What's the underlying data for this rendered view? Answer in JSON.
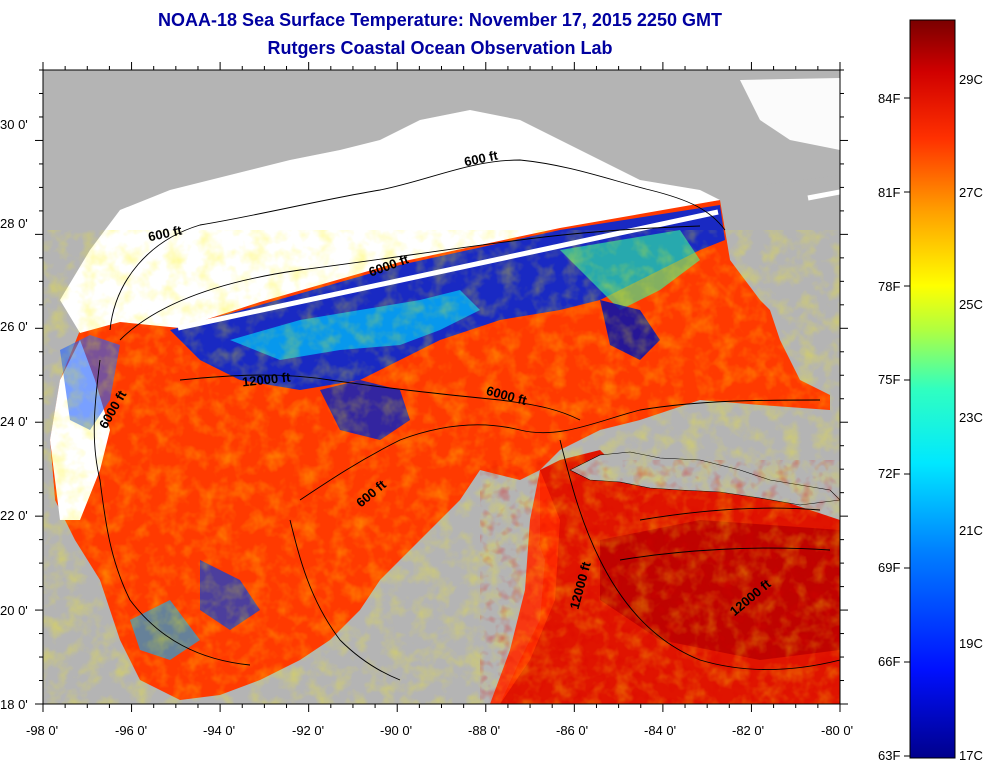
{
  "title": "NOAA-18 Sea Surface Temperature:  November 17, 2015 2250 GMT",
  "subtitle": "Rutgers Coastal Ocean Observation Lab",
  "map": {
    "lon_ticks": [
      "-98 0'",
      "-96 0'",
      "-94 0'",
      "-92 0'",
      "-90 0'",
      "-88 0'",
      "-86 0'",
      "-84 0'",
      "-82 0'",
      "-80 0'"
    ],
    "lat_ticks": [
      "18 0'",
      "20 0'",
      "22 0'",
      "24 0'",
      "26 0'",
      "28 0'",
      "30 0'"
    ],
    "contour_labels": [
      {
        "text": "600 ft",
        "name": "contour-600ft-north"
      },
      {
        "text": "600 ft",
        "name": "contour-600ft-west"
      },
      {
        "text": "6000 ft",
        "name": "contour-6000ft-north"
      },
      {
        "text": "6000 ft",
        "name": "contour-6000ft-west"
      },
      {
        "text": "12000 ft",
        "name": "contour-12000ft-central"
      },
      {
        "text": "6000 ft",
        "name": "contour-6000ft-east"
      },
      {
        "text": "600 ft",
        "name": "contour-600ft-south"
      },
      {
        "text": "12000 ft",
        "name": "contour-12000ft-yucatan"
      },
      {
        "text": "12000 ft",
        "name": "contour-12000ft-caribbean"
      }
    ],
    "colors": {
      "land": "#b4b4b4",
      "cloud": "#ffffff",
      "warm": "#ff2a00",
      "cold": "#0000c8"
    }
  },
  "colorbar": {
    "f_labels": [
      "84F",
      "81F",
      "78F",
      "75F",
      "72F",
      "69F",
      "66F",
      "63F"
    ],
    "c_labels": [
      "29C",
      "27C",
      "25C",
      "23C",
      "21C",
      "19C",
      "17C"
    ]
  }
}
